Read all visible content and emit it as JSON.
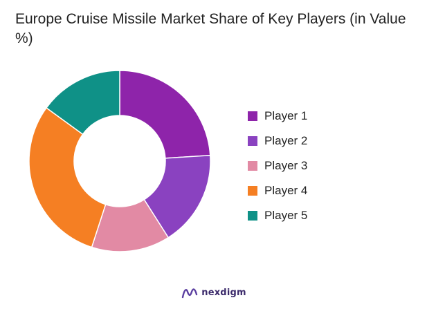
{
  "chart_data": {
    "type": "pie",
    "variant": "donut",
    "title": "Europe Cruise Missile Market Share of Key Players (in Value %)",
    "categories": [
      "Player 1",
      "Player 2",
      "Player 3",
      "Player 4",
      "Player 5"
    ],
    "values": [
      24,
      17,
      14,
      30,
      15
    ],
    "colors": [
      "#8e24aa",
      "#8a42c0",
      "#e28aa4",
      "#f57f23",
      "#0f9187"
    ],
    "legend_position": "right"
  },
  "brand": {
    "name": "nexdigm"
  }
}
